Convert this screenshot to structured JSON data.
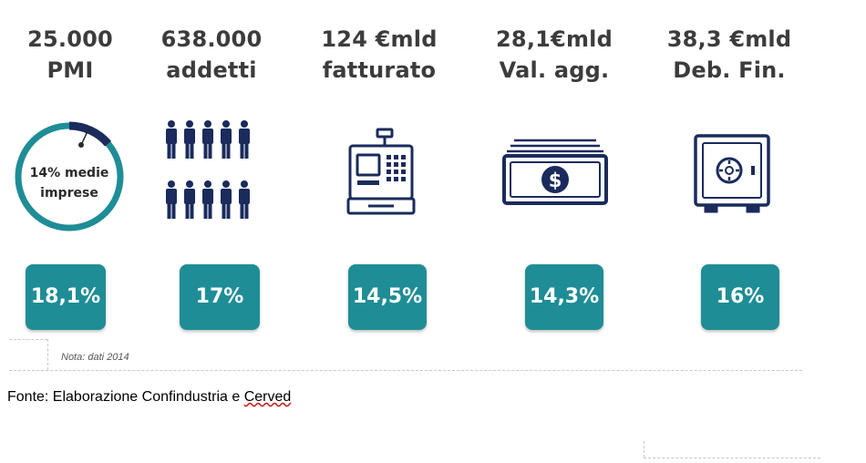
{
  "stats": [
    {
      "value": "25.000",
      "label": "PMI",
      "percent": "18,1%",
      "icon": "gauge-icon"
    },
    {
      "value": "638.000",
      "label": "addetti",
      "percent": "17%",
      "icon": "people-icon"
    },
    {
      "value": "124 €mld",
      "label": "fatturato",
      "percent": "14,5%",
      "icon": "cash-register-icon"
    },
    {
      "value": "28,1€mld",
      "label": "Val. agg.",
      "percent": "14,3%",
      "icon": "banknote-icon"
    },
    {
      "value": "38,3 €mld",
      "label": "Deb. Fin.",
      "percent": "16%",
      "icon": "safe-icon"
    }
  ],
  "gauge": {
    "line1": "14% medie",
    "line2": "imprese",
    "fraction": 0.14
  },
  "note": "Nota: dati 2014",
  "source": {
    "prefix": "Fonte: Elaborazione Confindustria e ",
    "name": "Cerved"
  },
  "colors": {
    "teal": "#1f8d96",
    "navy": "#1a2b5c",
    "text": "#3c3c3c"
  }
}
